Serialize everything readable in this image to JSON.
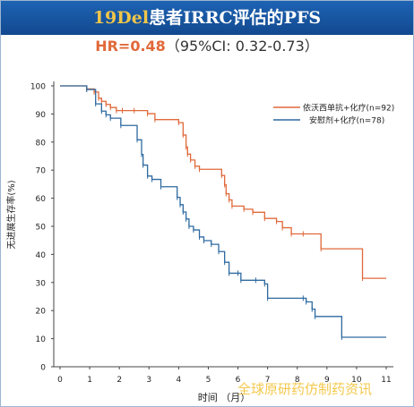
{
  "header": {
    "title_accent": "19Del",
    "title_rest": "患者IRRC评估的PFS"
  },
  "subtitle": {
    "hr_text": "HR=0.48",
    "ci_text": "（95%CI: 0.32-0.73）"
  },
  "watermark": "全球原研药仿制药资讯",
  "colors": {
    "header_bg": "#1a5aa8",
    "header_accent": "#f0c64a",
    "hr_color": "#e0693a",
    "series_orange": "#e0693a",
    "series_blue": "#2e6aa0"
  },
  "chart_data": {
    "type": "line",
    "step": true,
    "title": "",
    "xlabel": "时间 （月）",
    "ylabel": "无进展生存率(%)",
    "xlim": [
      0,
      11
    ],
    "ylim": [
      0,
      100
    ],
    "xticks": [
      0,
      1,
      2,
      3,
      4,
      5,
      6,
      7,
      8,
      9,
      10,
      11
    ],
    "yticks": [
      0,
      10,
      20,
      30,
      40,
      50,
      60,
      70,
      80,
      90,
      100
    ],
    "grid": false,
    "legend_position": "top-right",
    "series": [
      {
        "name": "依沃西单抗+化疗(n=92)",
        "color": "#e0693a",
        "x": [
          0,
          0.9,
          1.15,
          1.3,
          1.4,
          1.55,
          1.7,
          1.9,
          2.1,
          2.5,
          2.95,
          3.2,
          4.0,
          4.15,
          4.25,
          4.3,
          4.4,
          4.55,
          4.7,
          5.45,
          5.55,
          5.6,
          5.7,
          5.8,
          6.2,
          6.5,
          6.9,
          7.3,
          7.5,
          7.8,
          8.2,
          8.8,
          10.2,
          11.0
        ],
        "y": [
          100,
          98.9,
          97.8,
          95.6,
          94.5,
          93.4,
          92.3,
          91.2,
          91.2,
          91.2,
          90.1,
          88.0,
          86.9,
          82.5,
          78.2,
          75.7,
          73.6,
          71.4,
          70.3,
          68.1,
          64.8,
          61.6,
          59.4,
          57.2,
          56.1,
          55.0,
          52.8,
          51.7,
          49.5,
          47.3,
          47.3,
          42.0,
          31.5,
          31.5
        ]
      },
      {
        "name": "安慰剂+化疗(n=78)",
        "color": "#2e6aa0",
        "x": [
          0,
          0.9,
          1.2,
          1.4,
          1.55,
          1.7,
          2.05,
          2.6,
          2.75,
          2.8,
          2.95,
          3.1,
          3.4,
          3.95,
          4.05,
          4.15,
          4.25,
          4.35,
          4.5,
          4.7,
          4.85,
          5.1,
          5.35,
          5.55,
          5.7,
          6.0,
          6.1,
          6.6,
          6.9,
          7.0,
          8.2,
          8.3,
          8.5,
          8.6,
          9.5,
          11.0
        ],
        "y": [
          100,
          98.7,
          93.6,
          91.0,
          89.7,
          88.5,
          85.9,
          80.8,
          75.6,
          71.8,
          67.9,
          66.7,
          64.1,
          60.3,
          57.7,
          55.1,
          52.6,
          50.0,
          48.7,
          46.2,
          44.9,
          43.6,
          41.0,
          37.2,
          33.3,
          33.3,
          30.8,
          30.8,
          29.5,
          24.4,
          24.4,
          23.1,
          20.5,
          17.9,
          10.5,
          10.5
        ]
      }
    ]
  }
}
